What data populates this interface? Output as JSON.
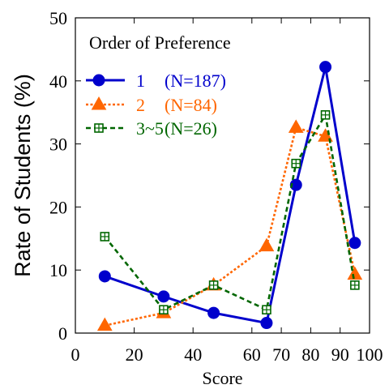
{
  "chart_data": {
    "type": "line",
    "xlabel": "Score",
    "ylabel": "Rate of Students (%)",
    "xlim": [
      0,
      100
    ],
    "ylim": [
      0,
      50
    ],
    "x_ticks": [
      0,
      20,
      40,
      60,
      70,
      80,
      90,
      100
    ],
    "y_ticks": [
      0,
      10,
      20,
      30,
      40,
      50
    ],
    "grid": false,
    "legend": {
      "title": "Order of Preference",
      "position": "top-left"
    },
    "series": [
      {
        "name": "1",
        "n_label": "(N=187)",
        "color": "#0000cc",
        "line_style": "solid",
        "marker": "circle",
        "x": [
          10,
          30,
          47,
          65,
          75,
          85,
          95
        ],
        "y": [
          9,
          5.8,
          3.2,
          1.6,
          23.5,
          42.2,
          14.3
        ]
      },
      {
        "name": "2",
        "n_label": "(N=84)",
        "color": "#ff6600",
        "line_style": "dotted",
        "marker": "triangle",
        "x": [
          10,
          30,
          47,
          65,
          75,
          85,
          95
        ],
        "y": [
          1.2,
          3.2,
          7.6,
          13.8,
          32.6,
          31.2,
          9.3
        ]
      },
      {
        "name": "3~5",
        "n_label": "(N=26)",
        "color": "#006600",
        "line_style": "dashed",
        "marker": "square-cross",
        "x": [
          10,
          30,
          47,
          65,
          75,
          85,
          95
        ],
        "y": [
          15.3,
          3.7,
          7.6,
          3.7,
          26.9,
          34.6,
          7.6
        ]
      }
    ]
  }
}
